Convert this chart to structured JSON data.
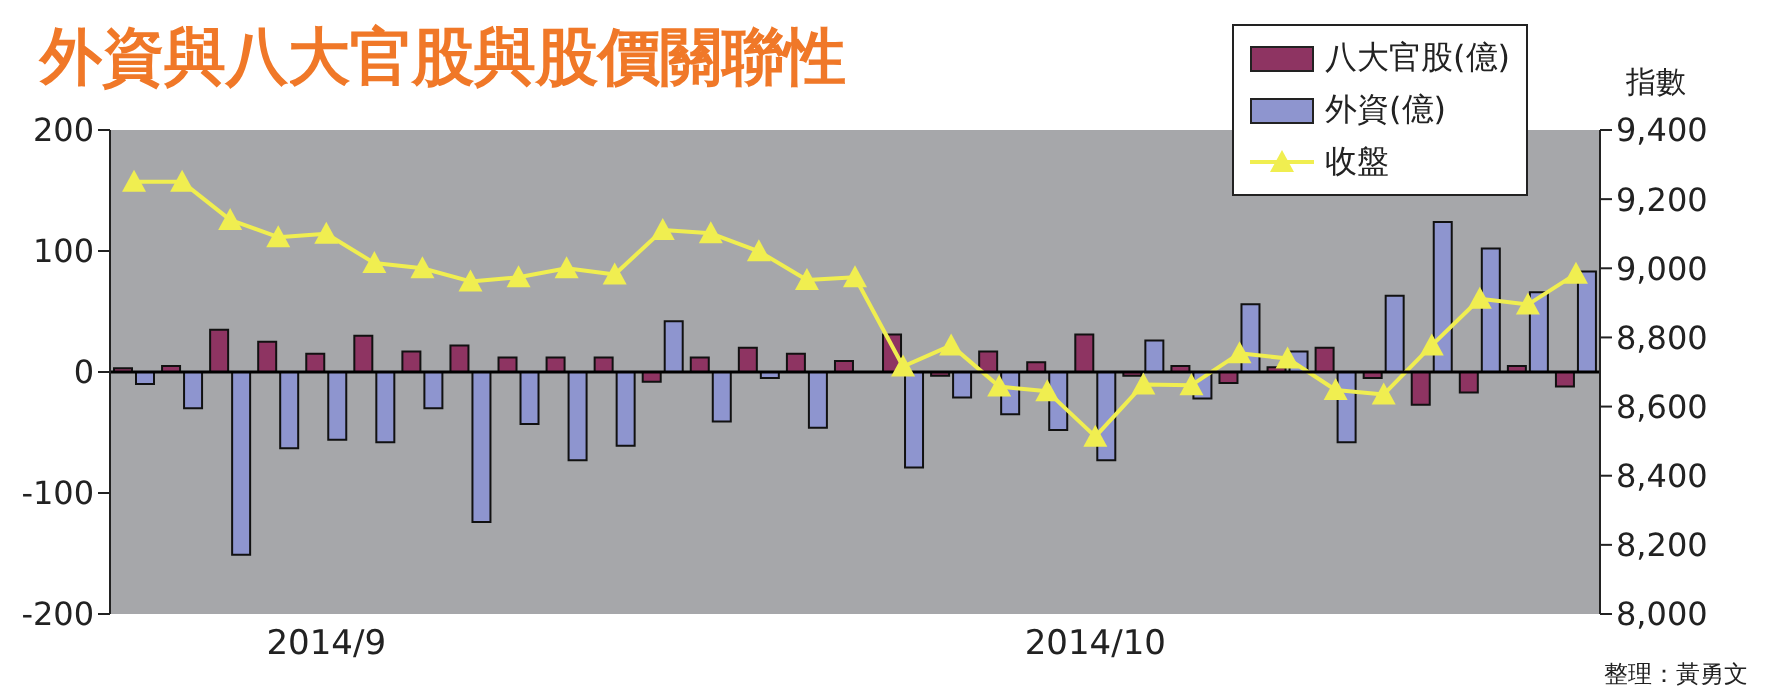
{
  "chart_data": {
    "type": "bar",
    "title": "外資與八大官股與股價關聯性",
    "categories": [
      null,
      null,
      null,
      null,
      "2014/9",
      null,
      null,
      null,
      null,
      null,
      null,
      null,
      null,
      null,
      null,
      null,
      null,
      null,
      null,
      null,
      "2014/10",
      null,
      null,
      null,
      null,
      null,
      null,
      null,
      null,
      null,
      null
    ],
    "series": [
      {
        "name": "八大官股(億)",
        "color": "#8e3462",
        "values": [
          3,
          5,
          35,
          25,
          15,
          30,
          17,
          22,
          12,
          12,
          12,
          -8,
          12,
          20,
          15,
          9,
          31,
          -3,
          17,
          8,
          31,
          -3,
          5,
          -9,
          4,
          20,
          -5,
          -27,
          -17,
          5,
          -12
        ]
      },
      {
        "name": "外資(億)",
        "color": "#8e95cf",
        "values": [
          -10,
          -30,
          -151,
          -63,
          -56,
          -58,
          -30,
          -124,
          -43,
          -73,
          -61,
          42,
          -41,
          -5,
          -46,
          null,
          -79,
          -21,
          -35,
          -48,
          -73,
          26,
          -22,
          56,
          17,
          -58,
          63,
          124,
          102,
          66,
          83
        ]
      },
      {
        "name": "收盤",
        "type": "line",
        "axis": "y2",
        "color": "#f0ee50",
        "marker": "triangle",
        "line_style": "solid",
        "values": [
          9250,
          9250,
          9140,
          9090,
          9100,
          9015,
          9000,
          8962,
          8974,
          9000,
          8982,
          9111,
          9101,
          9049,
          8966,
          8974,
          8716,
          8777,
          8658,
          8644,
          8513,
          8664,
          8662,
          8754,
          8739,
          8648,
          8635,
          8777,
          8912,
          8895,
          8984
        ]
      }
    ],
    "ylim": [
      -200,
      200
    ],
    "yticks": [
      -200,
      -100,
      0,
      100,
      200
    ],
    "y2lim": [
      8000,
      9400
    ],
    "y2ticks": [
      {
        "value": 8000,
        "label": "8,000"
      },
      {
        "value": 8200,
        "label": "8,200"
      },
      {
        "value": 8400,
        "label": "8,400"
      },
      {
        "value": 8600,
        "label": "8,600"
      },
      {
        "value": 8800,
        "label": "8,800"
      },
      {
        "value": 9000,
        "label": "9,000"
      },
      {
        "value": 9200,
        "label": "9,200"
      },
      {
        "value": 9400,
        "label": "9,400"
      }
    ],
    "y2label": "指數",
    "ref_lines": [
      {
        "axis": "y",
        "value": 0,
        "color": "#000000"
      }
    ],
    "grid": false,
    "legend": "top right",
    "annotations": [
      "整理：黃勇文"
    ]
  }
}
